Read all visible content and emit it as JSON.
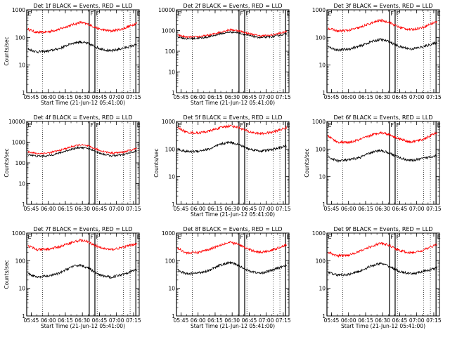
{
  "chart_data": [
    {
      "type": "line",
      "title": "Det 1f BLACK = Events, RED = LLD",
      "xlabel": "Start Time (21-Jun-12 05:41:00)",
      "ylabel": "Counts/sec",
      "xlim": [
        "05:41",
        "07:20"
      ],
      "ylim": [
        1,
        1000
      ],
      "yscale": "log",
      "xticks": [
        "05:45",
        "06:00",
        "06:15",
        "06:30",
        "06:45",
        "07:00",
        "07:15"
      ],
      "yticks": [
        "1",
        "10",
        "100",
        "1000"
      ],
      "markers": [
        {
          "label": "E",
          "time": "05:41"
        },
        {
          "label": "F",
          "time": "06:36"
        },
        {
          "label": "F",
          "time": "06:41"
        },
        {
          "label": "E",
          "time": "07:17"
        }
      ],
      "dotted_lines": [
        "05:55",
        "06:36",
        "06:43",
        "07:06",
        "07:12"
      ],
      "series": [
        {
          "color": "#ff0000",
          "x": [
            "05:42",
            "05:50",
            "06:00",
            "06:10",
            "06:20",
            "06:28",
            "06:35",
            "06:45",
            "06:55",
            "07:05",
            "07:18"
          ],
          "values": [
            200,
            150,
            160,
            200,
            280,
            350,
            300,
            200,
            170,
            200,
            330
          ]
        },
        {
          "color": "#000000",
          "x": [
            "05:42",
            "05:50",
            "06:00",
            "06:10",
            "06:20",
            "06:28",
            "06:35",
            "06:45",
            "06:55",
            "07:05",
            "07:18"
          ],
          "values": [
            38,
            30,
            32,
            40,
            60,
            70,
            60,
            40,
            32,
            40,
            55
          ]
        }
      ]
    },
    {
      "type": "line",
      "title": "Det 2f BLACK = Events, RED = LLD",
      "xlabel": "Start Time (21-Jun-12 05:41:00)",
      "ylabel": "",
      "xlim": [
        "05:41",
        "07:20"
      ],
      "ylim": [
        1,
        10000
      ],
      "yscale": "log",
      "xticks": [
        "05:45",
        "06:00",
        "06:15",
        "06:30",
        "06:45",
        "07:00",
        "07:15"
      ],
      "yticks": [
        "1",
        "10",
        "100",
        "1000",
        "10000"
      ],
      "markers": [
        {
          "label": "E",
          "time": "05:41"
        },
        {
          "label": "F",
          "time": "06:36"
        },
        {
          "label": "F",
          "time": "06:41"
        },
        {
          "label": "E",
          "time": "07:17"
        }
      ],
      "dotted_lines": [
        "05:55",
        "06:36",
        "06:43",
        "07:06",
        "07:12"
      ],
      "series": [
        {
          "color": "#ff0000",
          "x": [
            "05:42",
            "05:50",
            "06:00",
            "06:10",
            "06:20",
            "06:28",
            "06:35",
            "06:45",
            "06:55",
            "07:05",
            "07:18"
          ],
          "values": [
            600,
            480,
            500,
            600,
            850,
            1100,
            1000,
            700,
            550,
            600,
            900
          ]
        },
        {
          "color": "#000000",
          "x": [
            "05:42",
            "05:50",
            "06:00",
            "06:10",
            "06:20",
            "06:28",
            "06:35",
            "06:45",
            "06:55",
            "07:05",
            "07:18"
          ],
          "values": [
            500,
            400,
            420,
            500,
            700,
            850,
            800,
            560,
            450,
            500,
            700
          ]
        }
      ]
    },
    {
      "type": "line",
      "title": "Det 3f BLACK = Events, RED = LLD",
      "xlabel": "",
      "ylabel": "",
      "xlim": [
        "05:41",
        "07:20"
      ],
      "ylim": [
        1,
        1000
      ],
      "yscale": "log",
      "xticks": [
        "05:45",
        "06:00",
        "06:15",
        "06:30",
        "06:45",
        "07:00",
        "07:15"
      ],
      "yticks": [
        "1",
        "10",
        "100",
        "1000"
      ],
      "markers": [
        {
          "label": "E",
          "time": "05:41"
        },
        {
          "label": "F",
          "time": "06:36"
        },
        {
          "label": "F",
          "time": "06:41"
        },
        {
          "label": "E",
          "time": "07:17"
        }
      ],
      "dotted_lines": [
        "05:55",
        "06:36",
        "06:43",
        "07:06",
        "07:12"
      ],
      "series": [
        {
          "color": "#ff0000",
          "x": [
            "05:42",
            "05:50",
            "06:00",
            "06:10",
            "06:20",
            "06:28",
            "06:35",
            "06:45",
            "06:55",
            "07:05",
            "07:18"
          ],
          "values": [
            220,
            170,
            180,
            230,
            330,
            420,
            360,
            230,
            190,
            230,
            380
          ]
        },
        {
          "color": "#000000",
          "x": [
            "05:42",
            "05:50",
            "06:00",
            "06:10",
            "06:20",
            "06:28",
            "06:35",
            "06:45",
            "06:55",
            "07:05",
            "07:18"
          ],
          "values": [
            45,
            35,
            38,
            48,
            70,
            85,
            72,
            46,
            38,
            45,
            65
          ]
        }
      ]
    },
    {
      "type": "line",
      "title": "Det 4f BLACK = Events, RED = LLD",
      "xlabel": "",
      "ylabel": "Counts/sec",
      "xlim": [
        "05:41",
        "07:20"
      ],
      "ylim": [
        1,
        10000
      ],
      "yscale": "log",
      "xticks": [
        "05:45",
        "06:00",
        "06:15",
        "06:30",
        "06:45",
        "07:00",
        "07:15"
      ],
      "yticks": [
        "1",
        "10",
        "100",
        "1000",
        "10000"
      ],
      "markers": [
        {
          "label": "E",
          "time": "05:41"
        },
        {
          "label": "F",
          "time": "06:36"
        },
        {
          "label": "F",
          "time": "06:41"
        },
        {
          "label": "E",
          "time": "07:17"
        }
      ],
      "dotted_lines": [
        "05:55",
        "06:36",
        "06:43",
        "07:06",
        "07:12"
      ],
      "series": [
        {
          "color": "#ff0000",
          "x": [
            "05:42",
            "05:50",
            "06:00",
            "06:10",
            "06:20",
            "06:28",
            "06:35",
            "06:45",
            "06:55",
            "07:05",
            "07:18"
          ],
          "values": [
            350,
            280,
            300,
            400,
            600,
            750,
            650,
            400,
            300,
            320,
            500
          ]
        },
        {
          "color": "#000000",
          "x": [
            "05:42",
            "05:50",
            "06:00",
            "06:10",
            "06:20",
            "06:28",
            "06:35",
            "06:45",
            "06:55",
            "07:05",
            "07:18"
          ],
          "values": [
            260,
            210,
            220,
            300,
            450,
            560,
            500,
            300,
            220,
            240,
            380
          ]
        }
      ]
    },
    {
      "type": "line",
      "title": "Det 5f BLACK = Events, RED = LLD",
      "xlabel": "Start Time (21-Jun-12 05:41:00)",
      "ylabel": "Counts/sec",
      "xlim": [
        "05:41",
        "07:20"
      ],
      "ylim": [
        1,
        1000
      ],
      "yscale": "log",
      "xticks": [
        "05:45",
        "06:00",
        "06:15",
        "06:30",
        "06:45",
        "07:00",
        "07:15"
      ],
      "yticks": [
        "1",
        "10",
        "100",
        "1000"
      ],
      "markers": [
        {
          "label": "E",
          "time": "05:41"
        },
        {
          "label": "F",
          "time": "06:36"
        },
        {
          "label": "F",
          "time": "06:41"
        },
        {
          "label": "E",
          "time": "07:17"
        }
      ],
      "dotted_lines": [
        "05:55",
        "06:36",
        "06:43",
        "07:06",
        "07:12"
      ],
      "series": [
        {
          "color": "#ff0000",
          "x": [
            "05:42",
            "05:50",
            "06:00",
            "06:10",
            "06:20",
            "06:28",
            "06:35",
            "06:45",
            "06:55",
            "07:05",
            "07:18"
          ],
          "values": [
            600,
            400,
            380,
            450,
            600,
            700,
            620,
            420,
            360,
            400,
            600
          ]
        },
        {
          "color": "#000000",
          "x": [
            "05:42",
            "05:50",
            "06:00",
            "06:10",
            "06:20",
            "06:28",
            "06:35",
            "06:45",
            "06:55",
            "07:05",
            "07:18"
          ],
          "values": [
            100,
            80,
            85,
            100,
            150,
            180,
            150,
            100,
            85,
            95,
            130
          ]
        }
      ]
    },
    {
      "type": "line",
      "title": "Det 6f BLACK = Events, RED = LLD",
      "xlabel": "",
      "ylabel": "Counts/sec",
      "xlim": [
        "05:41",
        "07:20"
      ],
      "ylim": [
        1,
        1000
      ],
      "yscale": "log",
      "xticks": [
        "05:45",
        "06:00",
        "06:15",
        "06:30",
        "06:45",
        "07:00",
        "07:15"
      ],
      "yticks": [
        "1",
        "10",
        "100",
        "1000"
      ],
      "markers": [
        {
          "label": "E",
          "time": "05:41"
        },
        {
          "label": "F",
          "time": "06:36"
        },
        {
          "label": "F",
          "time": "06:41"
        },
        {
          "label": "E",
          "time": "07:17"
        }
      ],
      "dotted_lines": [
        "05:55",
        "06:36",
        "06:43",
        "07:06",
        "07:12"
      ],
      "series": [
        {
          "color": "#ff0000",
          "x": [
            "05:42",
            "05:50",
            "06:00",
            "06:10",
            "06:20",
            "06:28",
            "06:35",
            "06:45",
            "06:55",
            "07:05",
            "07:18"
          ],
          "values": [
            300,
            180,
            170,
            220,
            320,
            400,
            350,
            230,
            180,
            220,
            400
          ]
        },
        {
          "color": "#000000",
          "x": [
            "05:42",
            "05:50",
            "06:00",
            "06:10",
            "06:20",
            "06:28",
            "06:35",
            "06:45",
            "06:55",
            "07:05",
            "07:18"
          ],
          "values": [
            50,
            38,
            40,
            50,
            75,
            90,
            75,
            48,
            38,
            45,
            60
          ]
        }
      ]
    },
    {
      "type": "line",
      "title": "Det 7f BLACK = Events, RED = LLD",
      "xlabel": "Start Time (21-Jun-12 05:41:00)",
      "ylabel": "Counts/sec",
      "xlim": [
        "05:41",
        "07:20"
      ],
      "ylim": [
        1,
        1000
      ],
      "yscale": "log",
      "xticks": [
        "05:45",
        "06:00",
        "06:15",
        "06:30",
        "06:45",
        "07:00",
        "07:15"
      ],
      "yticks": [
        "1",
        "10",
        "100",
        "1000"
      ],
      "markers": [
        {
          "label": "E",
          "time": "05:41"
        },
        {
          "label": "F",
          "time": "06:36"
        },
        {
          "label": "F",
          "time": "06:41"
        },
        {
          "label": "E",
          "time": "07:17"
        }
      ],
      "dotted_lines": [
        "05:55",
        "06:36",
        "06:43",
        "07:06",
        "07:12"
      ],
      "series": [
        {
          "color": "#ff0000",
          "x": [
            "05:42",
            "05:50",
            "06:00",
            "06:10",
            "06:20",
            "06:28",
            "06:35",
            "06:45",
            "06:55",
            "07:05",
            "07:18"
          ],
          "values": [
            350,
            250,
            260,
            320,
            450,
            550,
            480,
            300,
            250,
            300,
            420
          ]
        },
        {
          "color": "#000000",
          "x": [
            "05:42",
            "05:50",
            "06:00",
            "06:10",
            "06:20",
            "06:28",
            "06:35",
            "06:45",
            "06:55",
            "07:05",
            "07:18"
          ],
          "values": [
            35,
            25,
            28,
            35,
            60,
            70,
            55,
            30,
            25,
            32,
            48
          ]
        }
      ]
    },
    {
      "type": "line",
      "title": "Det 8f BLACK = Events, RED = LLD",
      "xlabel": "Start Time (21-Jun-12 05:41:00)",
      "ylabel": "",
      "xlim": [
        "05:41",
        "07:20"
      ],
      "ylim": [
        1,
        1000
      ],
      "yscale": "log",
      "xticks": [
        "05:45",
        "06:00",
        "06:15",
        "06:30",
        "06:45",
        "07:00",
        "07:15"
      ],
      "yticks": [
        "1",
        "10",
        "100",
        "1000"
      ],
      "markers": [
        {
          "label": "E",
          "time": "05:41"
        },
        {
          "label": "F",
          "time": "06:36"
        },
        {
          "label": "F",
          "time": "06:41"
        },
        {
          "label": "E",
          "time": "07:17"
        }
      ],
      "dotted_lines": [
        "05:55",
        "06:36",
        "06:43",
        "07:06",
        "07:12"
      ],
      "series": [
        {
          "color": "#ff0000",
          "x": [
            "05:42",
            "05:50",
            "06:00",
            "06:10",
            "06:20",
            "06:28",
            "06:35",
            "06:45",
            "06:55",
            "07:05",
            "07:18"
          ],
          "values": [
            280,
            190,
            200,
            260,
            380,
            460,
            400,
            250,
            200,
            240,
            380
          ]
        },
        {
          "color": "#000000",
          "x": [
            "05:42",
            "05:50",
            "06:00",
            "06:10",
            "06:20",
            "06:28",
            "06:35",
            "06:45",
            "06:55",
            "07:05",
            "07:18"
          ],
          "values": [
            45,
            33,
            36,
            45,
            70,
            85,
            70,
            42,
            35,
            45,
            70
          ]
        }
      ]
    },
    {
      "type": "line",
      "title": "Det 9f BLACK = Events, RED = LLD",
      "xlabel": "Start Time (21-Jun-12 05:41:00)",
      "ylabel": "",
      "xlim": [
        "05:41",
        "07:20"
      ],
      "ylim": [
        1,
        1000
      ],
      "yscale": "log",
      "xticks": [
        "05:45",
        "06:00",
        "06:15",
        "06:30",
        "06:45",
        "07:00",
        "07:15"
      ],
      "yticks": [
        "1",
        "10",
        "100",
        "1000"
      ],
      "markers": [
        {
          "label": "E",
          "time": "05:41"
        },
        {
          "label": "F",
          "time": "06:36"
        },
        {
          "label": "F",
          "time": "06:41"
        },
        {
          "label": "E",
          "time": "07:17"
        }
      ],
      "dotted_lines": [
        "05:55",
        "06:36",
        "06:43",
        "07:06",
        "07:12"
      ],
      "series": [
        {
          "color": "#ff0000",
          "x": [
            "05:42",
            "05:50",
            "06:00",
            "06:10",
            "06:20",
            "06:28",
            "06:35",
            "06:45",
            "06:55",
            "07:05",
            "07:18"
          ],
          "values": [
            200,
            150,
            160,
            220,
            330,
            430,
            370,
            230,
            190,
            230,
            400
          ]
        },
        {
          "color": "#000000",
          "x": [
            "05:42",
            "05:50",
            "06:00",
            "06:10",
            "06:20",
            "06:28",
            "06:35",
            "06:45",
            "06:55",
            "07:05",
            "07:18"
          ],
          "values": [
            38,
            30,
            32,
            42,
            65,
            80,
            65,
            40,
            33,
            40,
            55
          ]
        }
      ]
    }
  ]
}
